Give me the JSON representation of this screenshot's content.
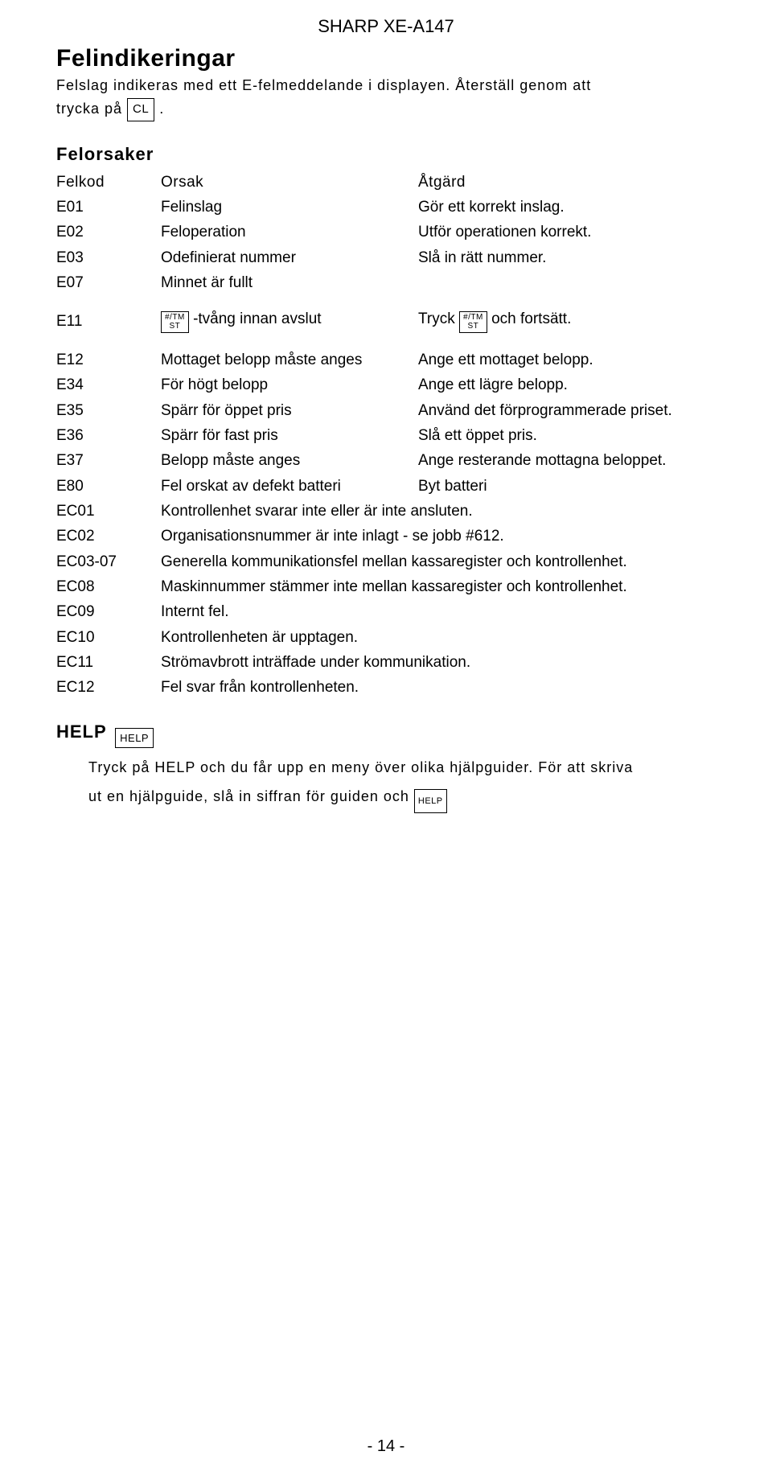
{
  "header": "SHARP XE-A147",
  "h1": "Felindikeringar",
  "intro_1": "Felslag indikeras med ett E-felmeddelande i displayen. Återställ genom att",
  "intro_2a": "trycka på ",
  "key_cl": "CL",
  "intro_2b": ".",
  "h2": "Felorsaker",
  "cols": {
    "c1": "Felkod",
    "c2": "Orsak",
    "c3": "Åtgärd"
  },
  "rows3": [
    {
      "c1": "E01",
      "c2": "Felinslag",
      "c3": "Gör ett korrekt inslag."
    },
    {
      "c1": "E02",
      "c2": "Feloperation",
      "c3": "Utför operationen korrekt."
    },
    {
      "c1": "E03",
      "c2": "Odefinierat nummer",
      "c3": "Slå in rätt nummer."
    },
    {
      "c1": "E07",
      "c2": "Minnet är fullt",
      "c3": ""
    }
  ],
  "e11": {
    "c1": "E11",
    "key1_l1": "#/TM",
    "key1_l2": "ST",
    "mid": " -tvång innan avslut",
    "r_pre": "Tryck ",
    "key2_l1": "#/TM",
    "key2_l2": "ST",
    "r_post": " och fortsätt."
  },
  "rows3b": [
    {
      "c1": "E12",
      "c2": "Mottaget belopp måste anges",
      "c3": "Ange ett mottaget belopp."
    },
    {
      "c1": "E34",
      "c2": "För högt belopp",
      "c3": "Ange ett lägre belopp."
    },
    {
      "c1": "E35",
      "c2": "Spärr för öppet pris",
      "c3": "Använd det förprogrammerade priset."
    },
    {
      "c1": "E36",
      "c2": "Spärr för fast pris",
      "c3": "Slå ett öppet pris."
    },
    {
      "c1": "E37",
      "c2": "Belopp måste anges",
      "c3": "Ange resterande mottagna beloppet."
    },
    {
      "c1": "E80",
      "c2": "Fel orskat av defekt batteri",
      "c3": "Byt batteri"
    }
  ],
  "rows2": [
    {
      "c1": "EC01",
      "c2": "Kontrollenhet svarar inte eller är inte ansluten."
    },
    {
      "c1": "EC02",
      "c2": "Organisationsnummer är inte inlagt - se jobb #612."
    },
    {
      "c1": "EC03-07",
      "c2": "Generella kommunikationsfel mellan kassaregister och kontrollenhet."
    },
    {
      "c1": "EC08",
      "c2": "Maskinnummer stämmer inte mellan kassaregister och kontrollenhet."
    },
    {
      "c1": "EC09",
      "c2": "Internt fel."
    },
    {
      "c1": "EC10",
      "c2": "Kontrollenheten är upptagen."
    },
    {
      "c1": "EC11",
      "c2": "Strömavbrott inträffade under kommunikation."
    },
    {
      "c1": "EC12",
      "c2": "Fel svar från kontrollenheten."
    }
  ],
  "help": {
    "label": "HELP",
    "key": "HELP",
    "body1": "Tryck på HELP och du får upp en meny över olika hjälpguider. För att skriva",
    "body2a": "ut en hjälpguide, slå in siffran för guiden och ",
    "key2": "HELP"
  },
  "pageno": "- 14 -"
}
